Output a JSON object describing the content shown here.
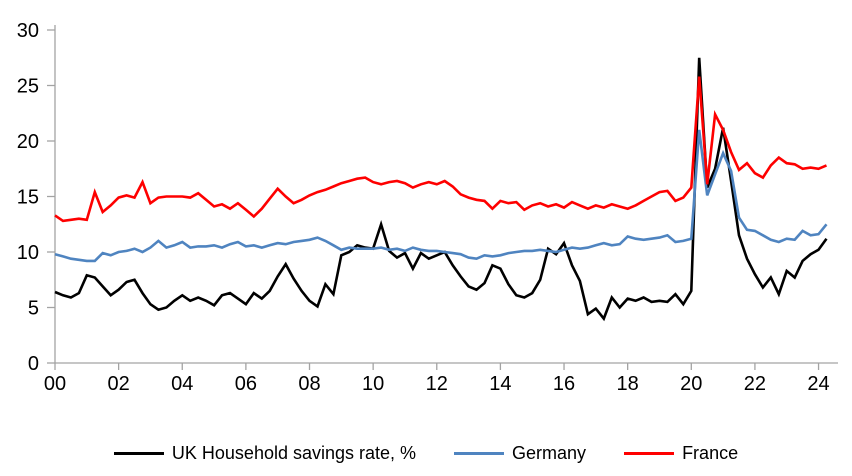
{
  "page": {
    "background": "#ffffff"
  },
  "colors": {
    "axis": "#a3a3a3",
    "text": "#000000",
    "uk": "#000000",
    "germany": "#4f84c0",
    "france": "#fe0000"
  },
  "chart_data": {
    "type": "line",
    "title": "",
    "grid": false,
    "legend_position": "bottom",
    "x_axis": {
      "tick_labels": [
        "00",
        "02",
        "04",
        "06",
        "08",
        "10",
        "12",
        "14",
        "16",
        "18",
        "20",
        "22",
        "24"
      ],
      "points_per_tick": 8,
      "frequency": "quarterly"
    },
    "y_axis": {
      "min": 0,
      "max": 30,
      "tick_step": 5,
      "tick_labels": [
        "0",
        "5",
        "10",
        "15",
        "20",
        "25",
        "30"
      ]
    },
    "series": [
      {
        "name": "UK Household savings rate, %",
        "color": "#000000",
        "values": [
          6.4,
          6.1,
          5.9,
          6.3,
          7.9,
          7.7,
          6.9,
          6.1,
          6.6,
          7.3,
          7.5,
          6.3,
          5.3,
          4.8,
          5.0,
          5.6,
          6.1,
          5.6,
          5.9,
          5.6,
          5.2,
          6.1,
          6.3,
          5.8,
          5.3,
          6.3,
          5.8,
          6.5,
          7.8,
          8.9,
          7.6,
          6.5,
          5.6,
          5.1,
          7.1,
          6.2,
          9.7,
          10.0,
          10.6,
          10.4,
          10.3,
          12.5,
          10.1,
          9.5,
          9.9,
          8.5,
          9.9,
          9.4,
          9.7,
          10.0,
          8.8,
          7.8,
          6.9,
          6.6,
          7.2,
          8.8,
          8.5,
          7.1,
          6.1,
          5.9,
          6.3,
          7.5,
          10.3,
          9.8,
          10.8,
          8.8,
          7.4,
          4.4,
          4.9,
          4.0,
          5.9,
          5.0,
          5.8,
          5.6,
          5.9,
          5.5,
          5.6,
          5.5,
          6.2,
          5.3,
          6.5,
          27.5,
          15.8,
          17.5,
          21.2,
          16.4,
          11.5,
          9.4,
          8.0,
          6.8,
          7.7,
          6.2,
          8.3,
          7.7,
          9.2,
          9.8,
          10.2,
          11.2
        ]
      },
      {
        "name": "Germany",
        "color": "#4f84c0",
        "values": [
          9.8,
          9.6,
          9.4,
          9.3,
          9.2,
          9.2,
          9.9,
          9.7,
          10.0,
          10.1,
          10.3,
          10.0,
          10.4,
          11.0,
          10.4,
          10.6,
          10.9,
          10.4,
          10.5,
          10.5,
          10.6,
          10.4,
          10.7,
          10.9,
          10.5,
          10.6,
          10.4,
          10.6,
          10.8,
          10.7,
          10.9,
          11.0,
          11.1,
          11.3,
          11.0,
          10.6,
          10.2,
          10.4,
          10.3,
          10.3,
          10.3,
          10.4,
          10.2,
          10.3,
          10.1,
          10.4,
          10.2,
          10.1,
          10.1,
          10.0,
          9.9,
          9.8,
          9.5,
          9.4,
          9.7,
          9.6,
          9.7,
          9.9,
          10.0,
          10.1,
          10.1,
          10.2,
          10.1,
          10.0,
          10.2,
          10.4,
          10.3,
          10.4,
          10.6,
          10.8,
          10.6,
          10.7,
          11.4,
          11.2,
          11.1,
          11.2,
          11.3,
          11.5,
          10.9,
          11.0,
          11.2,
          21.0,
          15.1,
          17.0,
          18.9,
          17.3,
          13.1,
          12.0,
          11.9,
          11.5,
          11.1,
          10.9,
          11.2,
          11.1,
          11.9,
          11.5,
          11.6,
          12.5
        ]
      },
      {
        "name": "France",
        "color": "#fe0000",
        "values": [
          13.3,
          12.8,
          12.9,
          13.0,
          12.9,
          15.4,
          13.6,
          14.2,
          14.9,
          15.1,
          14.9,
          16.3,
          14.4,
          14.9,
          15.0,
          15.0,
          15.0,
          14.9,
          15.3,
          14.7,
          14.1,
          14.3,
          13.9,
          14.4,
          13.8,
          13.2,
          13.9,
          14.8,
          15.7,
          15.0,
          14.4,
          14.7,
          15.1,
          15.4,
          15.6,
          15.9,
          16.2,
          16.4,
          16.6,
          16.7,
          16.3,
          16.1,
          16.3,
          16.4,
          16.2,
          15.8,
          16.1,
          16.3,
          16.1,
          16.4,
          15.9,
          15.2,
          14.9,
          14.7,
          14.6,
          13.9,
          14.6,
          14.4,
          14.5,
          13.8,
          14.2,
          14.4,
          14.1,
          14.3,
          14.0,
          14.5,
          14.2,
          13.9,
          14.2,
          14.0,
          14.3,
          14.1,
          13.9,
          14.2,
          14.6,
          15.0,
          15.4,
          15.5,
          14.6,
          14.9,
          15.8,
          25.8,
          16.1,
          22.4,
          21.0,
          19.0,
          17.4,
          18.0,
          17.1,
          16.7,
          17.8,
          18.5,
          18.0,
          17.9,
          17.5,
          17.6,
          17.5,
          17.8
        ]
      }
    ]
  }
}
